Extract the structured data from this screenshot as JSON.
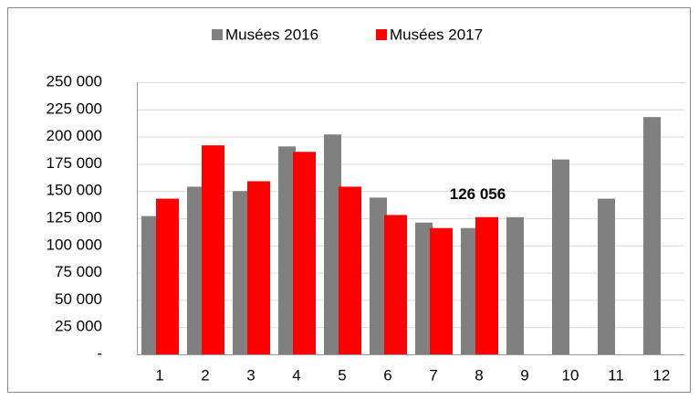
{
  "chart_data": {
    "type": "bar",
    "categories": [
      "1",
      "2",
      "3",
      "4",
      "5",
      "6",
      "7",
      "8",
      "9",
      "10",
      "11",
      "12"
    ],
    "series": [
      {
        "name": "Musées 2016",
        "color": "#808080",
        "values": [
          127000,
          154000,
          150000,
          191000,
          202000,
          144000,
          121000,
          116000,
          126000,
          179000,
          143000,
          218000
        ]
      },
      {
        "name": "Musées 2017",
        "color": "#ff0000",
        "values": [
          143000,
          192000,
          159000,
          186000,
          154000,
          128000,
          116000,
          126056,
          null,
          null,
          null,
          null
        ],
        "value_labels": [
          null,
          null,
          null,
          null,
          null,
          null,
          null,
          "126 056",
          null,
          null,
          null,
          null
        ]
      }
    ],
    "ylim": [
      0,
      250000
    ],
    "yticks": [
      {
        "value": 0,
        "label": "-"
      },
      {
        "value": 25000,
        "label": "25 000"
      },
      {
        "value": 50000,
        "label": "50 000"
      },
      {
        "value": 75000,
        "label": "75 000"
      },
      {
        "value": 100000,
        "label": "100 000"
      },
      {
        "value": 125000,
        "label": "125 000"
      },
      {
        "value": 150000,
        "label": "150 000"
      },
      {
        "value": 175000,
        "label": "175 000"
      },
      {
        "value": 200000,
        "label": "200 000"
      },
      {
        "value": 225000,
        "label": "225 000"
      },
      {
        "value": 250000,
        "label": "250 000"
      }
    ],
    "grid": true,
    "legend": "top"
  }
}
